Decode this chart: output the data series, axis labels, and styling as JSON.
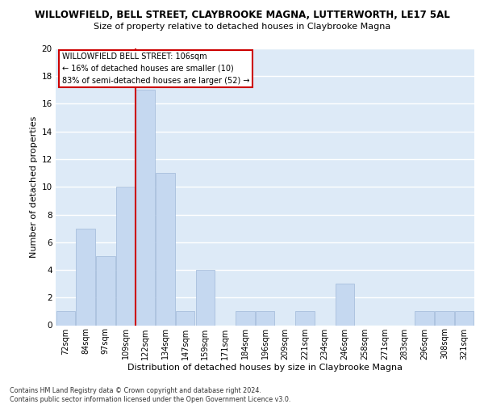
{
  "title": "WILLOWFIELD, BELL STREET, CLAYBROOKE MAGNA, LUTTERWORTH, LE17 5AL",
  "subtitle": "Size of property relative to detached houses in Claybrooke Magna",
  "xlabel": "Distribution of detached houses by size in Claybrooke Magna",
  "ylabel": "Number of detached properties",
  "categories": [
    "72sqm",
    "84sqm",
    "97sqm",
    "109sqm",
    "122sqm",
    "134sqm",
    "147sqm",
    "159sqm",
    "171sqm",
    "184sqm",
    "196sqm",
    "209sqm",
    "221sqm",
    "234sqm",
    "246sqm",
    "258sqm",
    "271sqm",
    "283sqm",
    "296sqm",
    "308sqm",
    "321sqm"
  ],
  "values": [
    1,
    7,
    5,
    10,
    17,
    11,
    1,
    4,
    0,
    1,
    1,
    0,
    1,
    0,
    3,
    0,
    0,
    0,
    1,
    1,
    1
  ],
  "bar_color": "#c5d8f0",
  "bar_edge_color": "#a0b8d8",
  "ylim": [
    0,
    20
  ],
  "yticks": [
    0,
    2,
    4,
    6,
    8,
    10,
    12,
    14,
    16,
    18,
    20
  ],
  "property_size_label": "WILLOWFIELD BELL STREET: 106sqm",
  "annotation_line1": "← 16% of detached houses are smaller (10)",
  "annotation_line2": "83% of semi-detached houses are larger (52) →",
  "vline_x_index": 3.5,
  "annotation_color": "#cc0000",
  "background_color": "#ddeaf7",
  "grid_color": "#ffffff",
  "footer1": "Contains HM Land Registry data © Crown copyright and database right 2024.",
  "footer2": "Contains public sector information licensed under the Open Government Licence v3.0."
}
